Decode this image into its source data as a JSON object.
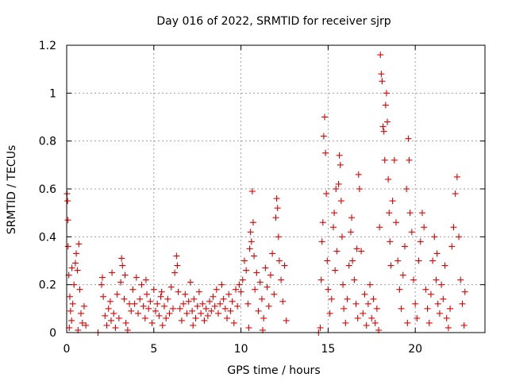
{
  "chart_data": {
    "type": "scatter",
    "title": "Day 016 of 2022, SRMTID for receiver sjrp",
    "xlabel": "GPS time / hours",
    "ylabel": "SRMTID / TECUs",
    "xlim": [
      0,
      24
    ],
    "ylim": [
      0,
      1.2
    ],
    "xticks": [
      0,
      5,
      10,
      15,
      20
    ],
    "xtick_labels": [
      "0",
      "5",
      "10",
      "15",
      "20"
    ],
    "yticks": [
      0,
      0.2,
      0.4,
      0.6,
      0.8,
      1.0,
      1.2
    ],
    "ytick_labels": [
      "0",
      "0.2",
      "0.4",
      "0.6",
      "0.8",
      "1",
      "1.2"
    ],
    "grid": true,
    "marker": "plus",
    "color": "#e00000",
    "series": [
      {
        "name": "SRMTID",
        "points": [
          [
            0.02,
            0.58
          ],
          [
            0.05,
            0.55
          ],
          [
            0.07,
            0.47
          ],
          [
            0.08,
            0.36
          ],
          [
            0.12,
            0.24
          ],
          [
            0.18,
            0.15
          ],
          [
            0.22,
            0.09
          ],
          [
            0.28,
            0.05
          ],
          [
            0.35,
            0.12
          ],
          [
            0.42,
            0.2
          ],
          [
            0.5,
            0.29
          ],
          [
            0.55,
            0.33
          ],
          [
            0.62,
            0.26
          ],
          [
            0.7,
            0.37
          ],
          [
            0.75,
            0.18
          ],
          [
            0.82,
            0.08
          ],
          [
            0.9,
            0.04
          ],
          [
            1.0,
            0.11
          ],
          [
            1.1,
            0.03
          ],
          [
            0.65,
            0.01
          ],
          [
            0.3,
            0.27
          ],
          [
            0.15,
            0.02
          ],
          [
            1.8,
            0.0
          ],
          [
            2.0,
            0.2
          ],
          [
            2.05,
            0.23
          ],
          [
            2.1,
            0.15
          ],
          [
            2.2,
            0.07
          ],
          [
            2.3,
            0.03
          ],
          [
            2.4,
            0.1
          ],
          [
            2.5,
            0.13
          ],
          [
            2.6,
            0.25
          ],
          [
            2.7,
            0.08
          ],
          [
            2.8,
            0.02
          ],
          [
            2.9,
            0.16
          ],
          [
            3.0,
            0.06
          ],
          [
            3.1,
            0.21
          ],
          [
            3.15,
            0.31
          ],
          [
            3.2,
            0.28
          ],
          [
            3.3,
            0.14
          ],
          [
            3.4,
            0.04
          ],
          [
            3.5,
            0.01
          ],
          [
            3.6,
            0.12
          ],
          [
            3.7,
            0.09
          ],
          [
            2.55,
            0.05
          ],
          [
            3.35,
            0.24
          ],
          [
            3.8,
            0.18
          ],
          [
            3.9,
            0.12
          ],
          [
            4.0,
            0.23
          ],
          [
            4.1,
            0.08
          ],
          [
            4.2,
            0.14
          ],
          [
            4.3,
            0.2
          ],
          [
            4.4,
            0.11
          ],
          [
            4.5,
            0.06
          ],
          [
            4.6,
            0.16
          ],
          [
            4.7,
            0.1
          ],
          [
            4.8,
            0.13
          ],
          [
            4.9,
            0.04
          ],
          [
            5.0,
            0.18
          ],
          [
            5.1,
            0.09
          ],
          [
            5.2,
            0.12
          ],
          [
            5.3,
            0.07
          ],
          [
            5.4,
            0.15
          ],
          [
            5.5,
            0.03
          ],
          [
            5.6,
            0.11
          ],
          [
            5.7,
            0.06
          ],
          [
            5.8,
            0.14
          ],
          [
            5.9,
            0.08
          ],
          [
            6.0,
            0.19
          ],
          [
            6.1,
            0.1
          ],
          [
            6.2,
            0.25
          ],
          [
            6.3,
            0.32
          ],
          [
            6.35,
            0.28
          ],
          [
            6.4,
            0.17
          ],
          [
            6.5,
            0.1
          ],
          [
            6.6,
            0.05
          ],
          [
            6.7,
            0.12
          ],
          [
            6.8,
            0.16
          ],
          [
            6.9,
            0.08
          ],
          [
            7.0,
            0.13
          ],
          [
            7.1,
            0.21
          ],
          [
            7.2,
            0.09
          ],
          [
            7.3,
            0.14
          ],
          [
            7.4,
            0.06
          ],
          [
            7.5,
            0.11
          ],
          [
            7.6,
            0.17
          ],
          [
            7.7,
            0.08
          ],
          [
            7.8,
            0.12
          ],
          [
            7.9,
            0.05
          ],
          [
            8.0,
            0.1
          ],
          [
            8.1,
            0.07
          ],
          [
            8.2,
            0.13
          ],
          [
            8.3,
            0.09
          ],
          [
            8.4,
            0.15
          ],
          [
            8.5,
            0.11
          ],
          [
            8.6,
            0.18
          ],
          [
            8.7,
            0.08
          ],
          [
            8.8,
            0.12
          ],
          [
            8.9,
            0.2
          ],
          [
            9.0,
            0.14
          ],
          [
            9.1,
            0.1
          ],
          [
            9.2,
            0.06
          ],
          [
            9.3,
            0.16
          ],
          [
            9.4,
            0.09
          ],
          [
            9.5,
            0.13
          ],
          [
            9.6,
            0.04
          ],
          [
            9.7,
            0.18
          ],
          [
            9.8,
            0.11
          ],
          [
            9.9,
            0.2
          ],
          [
            4.55,
            0.22
          ],
          [
            5.45,
            0.17
          ],
          [
            7.25,
            0.03
          ],
          [
            10.0,
            0.17
          ],
          [
            10.1,
            0.22
          ],
          [
            10.2,
            0.3
          ],
          [
            10.3,
            0.26
          ],
          [
            10.4,
            0.12
          ],
          [
            10.5,
            0.35
          ],
          [
            10.55,
            0.42
          ],
          [
            10.6,
            0.38
          ],
          [
            10.65,
            0.59
          ],
          [
            10.7,
            0.46
          ],
          [
            10.75,
            0.32
          ],
          [
            10.8,
            0.18
          ],
          [
            10.9,
            0.25
          ],
          [
            11.0,
            0.09
          ],
          [
            11.1,
            0.21
          ],
          [
            11.2,
            0.14
          ],
          [
            11.3,
            0.06
          ],
          [
            11.4,
            0.27
          ],
          [
            11.5,
            0.19
          ],
          [
            11.6,
            0.11
          ],
          [
            11.7,
            0.24
          ],
          [
            11.8,
            0.33
          ],
          [
            11.9,
            0.16
          ],
          [
            12.0,
            0.48
          ],
          [
            12.05,
            0.56
          ],
          [
            12.1,
            0.52
          ],
          [
            12.15,
            0.4
          ],
          [
            12.2,
            0.3
          ],
          [
            12.3,
            0.22
          ],
          [
            12.4,
            0.13
          ],
          [
            12.5,
            0.28
          ],
          [
            12.6,
            0.05
          ],
          [
            10.45,
            0.02
          ],
          [
            11.25,
            0.01
          ],
          [
            14.45,
            0.0
          ],
          [
            14.6,
            0.22
          ],
          [
            14.65,
            0.38
          ],
          [
            14.7,
            0.46
          ],
          [
            14.75,
            0.82
          ],
          [
            14.8,
            0.9
          ],
          [
            14.85,
            0.75
          ],
          [
            14.9,
            0.58
          ],
          [
            14.95,
            0.3
          ],
          [
            15.0,
            0.18
          ],
          [
            15.1,
            0.08
          ],
          [
            15.2,
            0.14
          ],
          [
            15.3,
            0.44
          ],
          [
            15.35,
            0.5
          ],
          [
            15.4,
            0.26
          ],
          [
            15.5,
            0.34
          ],
          [
            15.6,
            0.62
          ],
          [
            15.65,
            0.74
          ],
          [
            15.7,
            0.7
          ],
          [
            15.75,
            0.55
          ],
          [
            15.8,
            0.4
          ],
          [
            15.85,
            0.2
          ],
          [
            15.9,
            0.1
          ],
          [
            16.0,
            0.04
          ],
          [
            16.1,
            0.14
          ],
          [
            16.2,
            0.28
          ],
          [
            16.3,
            0.42
          ],
          [
            16.35,
            0.48
          ],
          [
            16.4,
            0.3
          ],
          [
            16.5,
            0.22
          ],
          [
            16.6,
            0.12
          ],
          [
            16.7,
            0.06
          ],
          [
            16.75,
            0.66
          ],
          [
            16.8,
            0.6
          ],
          [
            16.9,
            0.34
          ],
          [
            17.0,
            0.08
          ],
          [
            17.1,
            0.16
          ],
          [
            17.2,
            0.03
          ],
          [
            17.3,
            0.12
          ],
          [
            17.4,
            0.2
          ],
          [
            17.5,
            0.06
          ],
          [
            17.6,
            0.14
          ],
          [
            17.7,
            0.04
          ],
          [
            17.8,
            0.1
          ],
          [
            17.9,
            0.01
          ],
          [
            15.45,
            0.6
          ],
          [
            14.55,
            0.02
          ],
          [
            16.65,
            0.35
          ],
          [
            17.95,
            0.44
          ],
          [
            18.0,
            1.16
          ],
          [
            18.05,
            1.08
          ],
          [
            18.1,
            1.05
          ],
          [
            18.15,
            0.86
          ],
          [
            18.2,
            0.84
          ],
          [
            18.25,
            0.72
          ],
          [
            18.3,
            0.95
          ],
          [
            18.35,
            1.0
          ],
          [
            18.4,
            0.88
          ],
          [
            18.45,
            0.64
          ],
          [
            18.5,
            0.5
          ],
          [
            18.55,
            0.38
          ],
          [
            18.6,
            0.28
          ],
          [
            18.7,
            0.55
          ],
          [
            18.8,
            0.72
          ],
          [
            18.9,
            0.46
          ],
          [
            19.0,
            0.3
          ],
          [
            19.1,
            0.18
          ],
          [
            19.2,
            0.1
          ],
          [
            19.3,
            0.24
          ],
          [
            19.4,
            0.36
          ],
          [
            19.5,
            0.6
          ],
          [
            19.6,
            0.81
          ],
          [
            19.65,
            0.72
          ],
          [
            19.7,
            0.5
          ],
          [
            19.8,
            0.42
          ],
          [
            19.9,
            0.22
          ],
          [
            20.0,
            0.12
          ],
          [
            20.1,
            0.06
          ],
          [
            20.2,
            0.3
          ],
          [
            20.3,
            0.38
          ],
          [
            20.4,
            0.5
          ],
          [
            20.5,
            0.44
          ],
          [
            20.6,
            0.18
          ],
          [
            20.7,
            0.1
          ],
          [
            20.8,
            0.04
          ],
          [
            20.9,
            0.16
          ],
          [
            21.0,
            0.3
          ],
          [
            21.1,
            0.4
          ],
          [
            21.2,
            0.22
          ],
          [
            21.3,
            0.12
          ],
          [
            21.4,
            0.08
          ],
          [
            21.5,
            0.2
          ],
          [
            21.6,
            0.14
          ],
          [
            21.7,
            0.28
          ],
          [
            21.8,
            0.06
          ],
          [
            21.9,
            0.02
          ],
          [
            22.0,
            0.1
          ],
          [
            22.1,
            0.36
          ],
          [
            22.2,
            0.44
          ],
          [
            22.3,
            0.58
          ],
          [
            22.4,
            0.65
          ],
          [
            22.5,
            0.4
          ],
          [
            22.6,
            0.22
          ],
          [
            22.7,
            0.12
          ],
          [
            22.8,
            0.03
          ],
          [
            22.85,
            0.17
          ],
          [
            19.55,
            0.04
          ],
          [
            21.25,
            0.33
          ]
        ]
      }
    ]
  }
}
